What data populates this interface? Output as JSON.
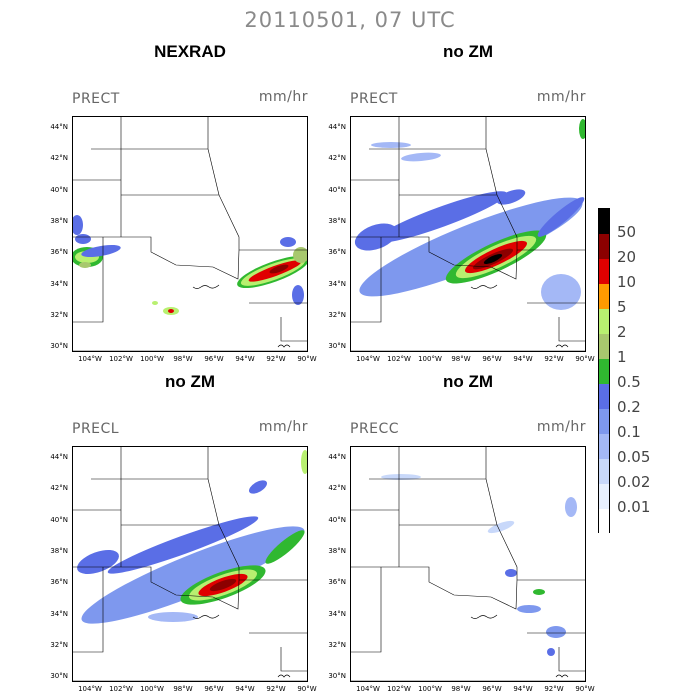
{
  "title": "20110501, 07 UTC",
  "panels": [
    {
      "title": "NEXRAD",
      "label": "PRECT",
      "units": "mm/hr"
    },
    {
      "title": "no ZM",
      "label": "PRECT",
      "units": "mm/hr"
    },
    {
      "title": "no ZM",
      "label": "PRECL",
      "units": "mm/hr"
    },
    {
      "title": "no ZM",
      "label": "PRECC",
      "units": "mm/hr"
    }
  ],
  "lat_ticks": [
    "44°N",
    "42°N",
    "40°N",
    "38°N",
    "36°N",
    "34°N",
    "32°N",
    "30°N"
  ],
  "lon_ticks": [
    "104°W",
    "102°W",
    "100°W",
    "98°W",
    "96°W",
    "94°W",
    "92°W",
    "90°W"
  ],
  "legend": {
    "labels": [
      "50",
      "20",
      "10",
      "5",
      "2",
      "1",
      "0.5",
      "0.2",
      "0.1",
      "0.05",
      "0.02",
      "0.01"
    ],
    "colors": [
      "#000000",
      "#8c0000",
      "#e00000",
      "#ff9a00",
      "#b8f070",
      "#a8c86e",
      "#30b830",
      "#5a6ee6",
      "#7e98ee",
      "#a4b8f6",
      "#c8d8fa",
      "#e8f0fe",
      "#ffffff"
    ]
  }
}
